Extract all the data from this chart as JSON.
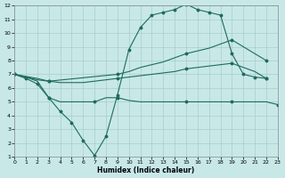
{
  "xlabel": "Humidex (Indice chaleur)",
  "background_color": "#c8e8e8",
  "grid_color": "#a8cccc",
  "line_color": "#1e6b5e",
  "xlim": [
    0,
    23
  ],
  "ylim": [
    1,
    12
  ],
  "xticks": [
    0,
    1,
    2,
    3,
    4,
    5,
    6,
    7,
    8,
    9,
    10,
    11,
    12,
    13,
    14,
    15,
    16,
    17,
    18,
    19,
    20,
    21,
    22,
    23
  ],
  "yticks": [
    1,
    2,
    3,
    4,
    5,
    6,
    7,
    8,
    9,
    10,
    11,
    12
  ],
  "curve1_x": [
    0,
    1,
    2,
    3,
    4,
    5,
    6,
    7,
    8,
    9,
    10,
    11,
    12,
    13,
    14,
    15,
    16,
    17,
    18,
    19,
    20,
    21,
    22
  ],
  "curve1_y": [
    7.0,
    6.7,
    6.3,
    5.3,
    4.3,
    3.5,
    2.2,
    1.1,
    2.5,
    5.5,
    8.8,
    10.4,
    11.3,
    11.5,
    11.7,
    12.1,
    11.7,
    11.5,
    11.3,
    8.5,
    7.0,
    6.8,
    6.7
  ],
  "curve2_x": [
    0,
    1,
    2,
    3,
    9,
    10,
    11,
    12,
    13,
    14,
    15,
    16,
    17,
    18,
    19,
    20,
    21,
    22
  ],
  "curve2_y": [
    7.0,
    6.85,
    6.7,
    6.5,
    7.0,
    7.2,
    7.5,
    7.7,
    7.9,
    8.2,
    8.5,
    8.7,
    8.9,
    9.2,
    9.5,
    9.0,
    8.5,
    8.0
  ],
  "curve3_x": [
    0,
    1,
    2,
    3,
    4,
    5,
    6,
    7,
    8,
    9,
    10,
    11,
    12,
    13,
    14,
    15,
    16,
    17,
    18,
    19,
    20,
    21,
    22
  ],
  "curve3_y": [
    7.0,
    6.8,
    6.6,
    6.5,
    6.4,
    6.4,
    6.4,
    6.5,
    6.6,
    6.7,
    6.8,
    6.9,
    7.0,
    7.1,
    7.2,
    7.4,
    7.5,
    7.6,
    7.7,
    7.8,
    7.5,
    7.2,
    6.7
  ],
  "curve4_x": [
    0,
    1,
    2,
    3,
    4,
    5,
    6,
    7,
    8,
    9,
    10,
    11,
    12,
    13,
    14,
    15,
    16,
    17,
    18,
    19,
    20,
    21,
    22,
    23
  ],
  "curve4_y": [
    7.0,
    6.8,
    6.5,
    5.3,
    5.0,
    5.0,
    5.0,
    5.0,
    5.3,
    5.3,
    5.1,
    5.0,
    5.0,
    5.0,
    5.0,
    5.0,
    5.0,
    5.0,
    5.0,
    5.0,
    5.0,
    5.0,
    5.0,
    4.8
  ],
  "curve2_markers_x": [
    0,
    3,
    9,
    15,
    19,
    22
  ],
  "curve2_markers_y": [
    7.0,
    6.5,
    7.0,
    8.5,
    9.5,
    8.0
  ],
  "curve3_markers_x": [
    0,
    3,
    9,
    15,
    19,
    22
  ],
  "curve3_markers_y": [
    7.0,
    6.5,
    6.7,
    7.4,
    7.8,
    6.7
  ],
  "curve4_markers_x": [
    0,
    3,
    7,
    9,
    15,
    19,
    23
  ],
  "curve4_markers_y": [
    7.0,
    5.3,
    5.0,
    5.3,
    5.0,
    5.0,
    4.8
  ]
}
